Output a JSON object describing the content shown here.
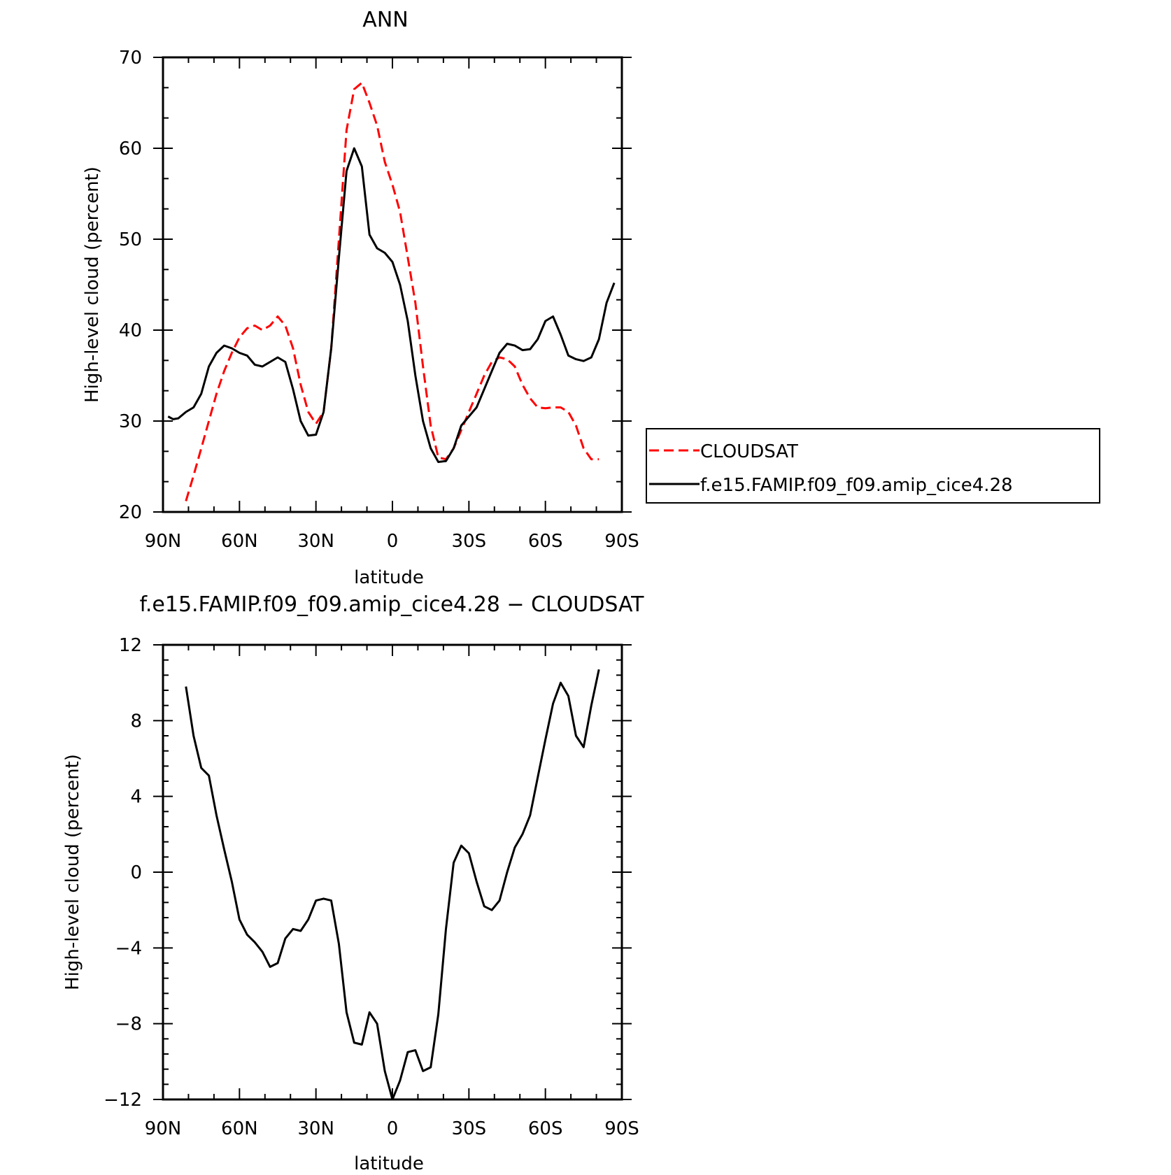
{
  "chart_data": [
    {
      "type": "line",
      "title": "ANN",
      "xlabel": "latitude",
      "ylabel": "High-level cloud (percent)",
      "xlim": [
        90,
        -90
      ],
      "ylim": [
        20,
        70
      ],
      "xticks": [
        {
          "value": 90,
          "label": "90N"
        },
        {
          "value": 60,
          "label": "60N"
        },
        {
          "value": 30,
          "label": "30N"
        },
        {
          "value": 0,
          "label": "0"
        },
        {
          "value": -30,
          "label": "30S"
        },
        {
          "value": -60,
          "label": "60S"
        },
        {
          "value": -90,
          "label": "90S"
        }
      ],
      "yticks": [
        20,
        30,
        40,
        50,
        60,
        70
      ],
      "legend_placement": "right",
      "series": [
        {
          "name": "CLOUDSAT",
          "color": "#ff0000",
          "dash": "dashed",
          "x": [
            81,
            78,
            75,
            72,
            69,
            66,
            63,
            60,
            57,
            54,
            51,
            48,
            45,
            42,
            39,
            36,
            33,
            30,
            27,
            24,
            21,
            18,
            15,
            12,
            9,
            6,
            3,
            0,
            -3,
            -6,
            -9,
            -12,
            -15,
            -18,
            -21,
            -24,
            -27,
            -30,
            -33,
            -36,
            -39,
            -42,
            -45,
            -48,
            -51,
            -54,
            -57,
            -60,
            -63,
            -66,
            -69,
            -72,
            -75,
            -78,
            -81
          ],
          "y": [
            21.2,
            24.0,
            27.0,
            30.0,
            33.0,
            35.5,
            37.5,
            39.2,
            40.2,
            40.5,
            40.0,
            40.5,
            41.5,
            40.5,
            38.0,
            34.0,
            31.0,
            29.7,
            31.0,
            38.0,
            50.0,
            62.0,
            66.5,
            67.2,
            65.0,
            62.5,
            58.5,
            56.0,
            53.0,
            48.0,
            43.0,
            36.0,
            29.5,
            26.0,
            25.8,
            27.0,
            29.0,
            31.0,
            33.0,
            35.0,
            36.5,
            37.0,
            36.8,
            36.0,
            34.0,
            32.5,
            31.5,
            31.4,
            31.5,
            31.5,
            31.0,
            29.5,
            27.0,
            25.8,
            25.8
          ]
        },
        {
          "name": "f.e15.FAMIP.f09_f09.amip_cice4.28",
          "color": "#000000",
          "dash": "solid",
          "x": [
            88,
            86,
            84,
            81,
            78,
            75,
            72,
            69,
            66,
            63,
            60,
            57,
            54,
            51,
            48,
            45,
            42,
            39,
            36,
            33,
            30,
            27,
            24,
            21,
            18,
            15,
            12,
            9,
            6,
            3,
            0,
            -3,
            -6,
            -9,
            -12,
            -15,
            -18,
            -21,
            -24,
            -27,
            -30,
            -33,
            -36,
            -39,
            -42,
            -45,
            -48,
            -51,
            -54,
            -57,
            -60,
            -63,
            -66,
            -69,
            -72,
            -75,
            -78,
            -81,
            -84,
            -87
          ],
          "y": [
            30.5,
            30.2,
            30.3,
            31.0,
            31.5,
            33.0,
            36.0,
            37.5,
            38.3,
            38.0,
            37.5,
            37.2,
            36.2,
            36.0,
            36.5,
            37.0,
            36.5,
            33.5,
            30.0,
            28.4,
            28.5,
            31.0,
            38.0,
            48.0,
            57.5,
            60.0,
            58.0,
            50.5,
            49.0,
            48.5,
            47.5,
            45.0,
            41.0,
            35.0,
            30.0,
            27.0,
            25.5,
            25.6,
            27.0,
            29.5,
            30.5,
            31.5,
            33.5,
            35.5,
            37.5,
            38.5,
            38.3,
            37.8,
            37.9,
            39.0,
            41.0,
            41.5,
            39.5,
            37.2,
            36.8,
            36.6,
            37.0,
            39.0,
            43.0,
            45.2
          ]
        }
      ]
    },
    {
      "type": "line",
      "title": "f.e15.FAMIP.f09_f09.amip_cice4.28 − CLOUDSAT",
      "xlabel": "latitude",
      "ylabel": "High-level cloud (percent)",
      "xlim": [
        90,
        -90
      ],
      "ylim": [
        -12,
        12
      ],
      "xticks": [
        {
          "value": 90,
          "label": "90N"
        },
        {
          "value": 60,
          "label": "60N"
        },
        {
          "value": 30,
          "label": "30N"
        },
        {
          "value": 0,
          "label": "0"
        },
        {
          "value": -30,
          "label": "30S"
        },
        {
          "value": -60,
          "label": "60S"
        },
        {
          "value": -90,
          "label": "90S"
        }
      ],
      "yticks": [
        {
          "value": 12,
          "label": "12"
        },
        {
          "value": 8,
          "label": "8"
        },
        {
          "value": 4,
          "label": "4"
        },
        {
          "value": 0,
          "label": "0"
        },
        {
          "value": -4,
          "label": "−4"
        },
        {
          "value": -8,
          "label": "−8"
        },
        {
          "value": -12,
          "label": "−12"
        }
      ],
      "series": [
        {
          "color": "#000000",
          "dash": "solid",
          "x": [
            81,
            78,
            75,
            72,
            69,
            66,
            63,
            60,
            57,
            54,
            51,
            48,
            45,
            42,
            39,
            36,
            33,
            30,
            27,
            24,
            21,
            18,
            15,
            12,
            9,
            6,
            3,
            0,
            -3,
            -6,
            -9,
            -12,
            -15,
            -18,
            -21,
            -24,
            -27,
            -30,
            -33,
            -36,
            -39,
            -42,
            -45,
            -48,
            -51,
            -54,
            -57,
            -60,
            -63,
            -66,
            -69,
            -72,
            -75,
            -78,
            -81
          ],
          "y": [
            9.8,
            7.2,
            5.5,
            5.1,
            3.0,
            1.2,
            -0.5,
            -2.5,
            -3.3,
            -3.7,
            -4.2,
            -5.0,
            -4.8,
            -3.5,
            -3.0,
            -3.1,
            -2.5,
            -1.5,
            -1.4,
            -1.5,
            -3.8,
            -7.4,
            -9.0,
            -9.1,
            -7.4,
            -8.0,
            -10.5,
            -12.0,
            -11.0,
            -9.5,
            -9.4,
            -10.5,
            -10.3,
            -7.5,
            -3.0,
            0.5,
            1.4,
            1.0,
            -0.5,
            -1.8,
            -2.0,
            -1.5,
            0.0,
            1.3,
            2.0,
            3.0,
            5.0,
            7.0,
            8.9,
            10.0,
            9.3,
            7.2,
            6.6,
            8.8,
            10.7
          ]
        }
      ]
    }
  ]
}
